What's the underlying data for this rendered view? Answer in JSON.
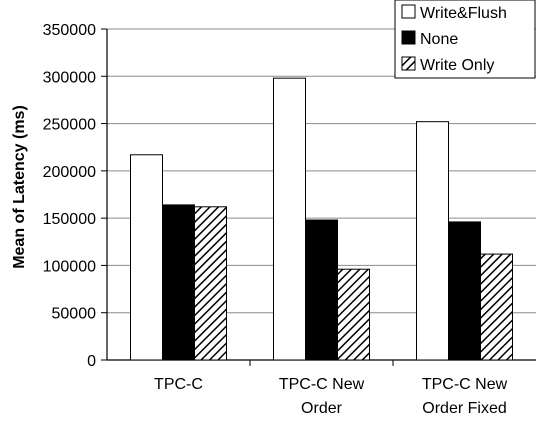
{
  "chart_data": {
    "type": "bar",
    "title": "",
    "xlabel": "",
    "ylabel": "Mean of Latency (ms)",
    "ylim": [
      0,
      350000
    ],
    "yticks": [
      0,
      50000,
      100000,
      150000,
      200000,
      250000,
      300000,
      350000
    ],
    "grid": true,
    "legend_position": "top-right",
    "categories": [
      [
        "TPC-C"
      ],
      [
        "TPC-C New",
        "Order"
      ],
      [
        "TPC-C New",
        "Order Fixed"
      ]
    ],
    "series": [
      {
        "name": "Write&Flush",
        "fill": "white",
        "color": "#ffffff",
        "values": [
          217000,
          298000,
          252000
        ]
      },
      {
        "name": "None",
        "fill": "black",
        "color": "#000000",
        "values": [
          164000,
          148000,
          146000
        ]
      },
      {
        "name": "Write Only",
        "fill": "hatched",
        "color": "#000000",
        "values": [
          162000,
          96000,
          112000
        ]
      }
    ]
  }
}
